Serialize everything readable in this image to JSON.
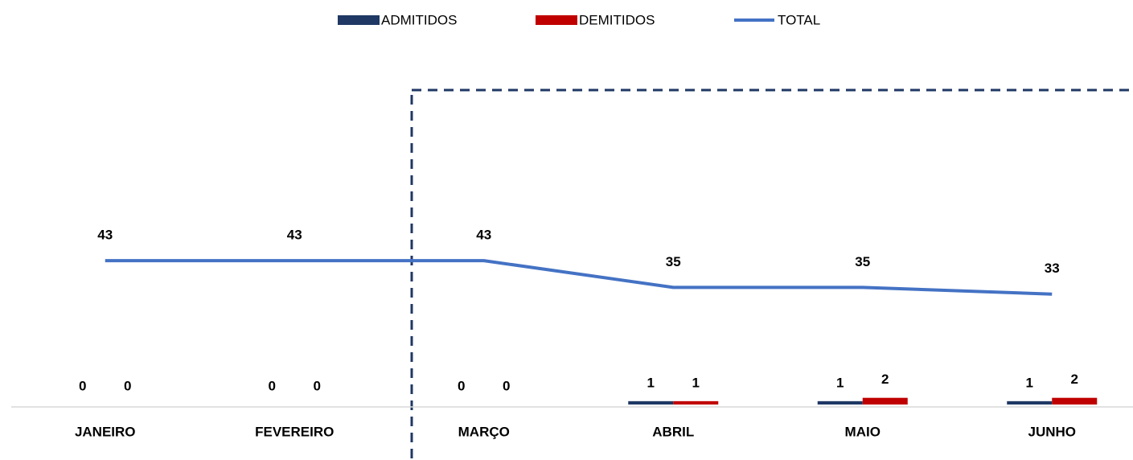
{
  "chart_data": {
    "type": "bar-line",
    "categories": [
      "JANEIRO",
      "FEVEREIRO",
      "MARÇO",
      "ABRIL",
      "MAIO",
      "JUNHO"
    ],
    "series": [
      {
        "name": "ADMITIDOS",
        "type": "bar",
        "color": "#1f3864",
        "values": [
          0,
          0,
          0,
          1,
          1,
          1
        ]
      },
      {
        "name": "DEMITIDOS",
        "type": "bar",
        "color": "#c00000",
        "values": [
          0,
          0,
          0,
          1,
          2,
          2
        ]
      },
      {
        "name": "TOTAL",
        "type": "line",
        "color": "#4472c4",
        "values": [
          43,
          43,
          43,
          35,
          35,
          33
        ]
      }
    ],
    "legend": "top"
  }
}
